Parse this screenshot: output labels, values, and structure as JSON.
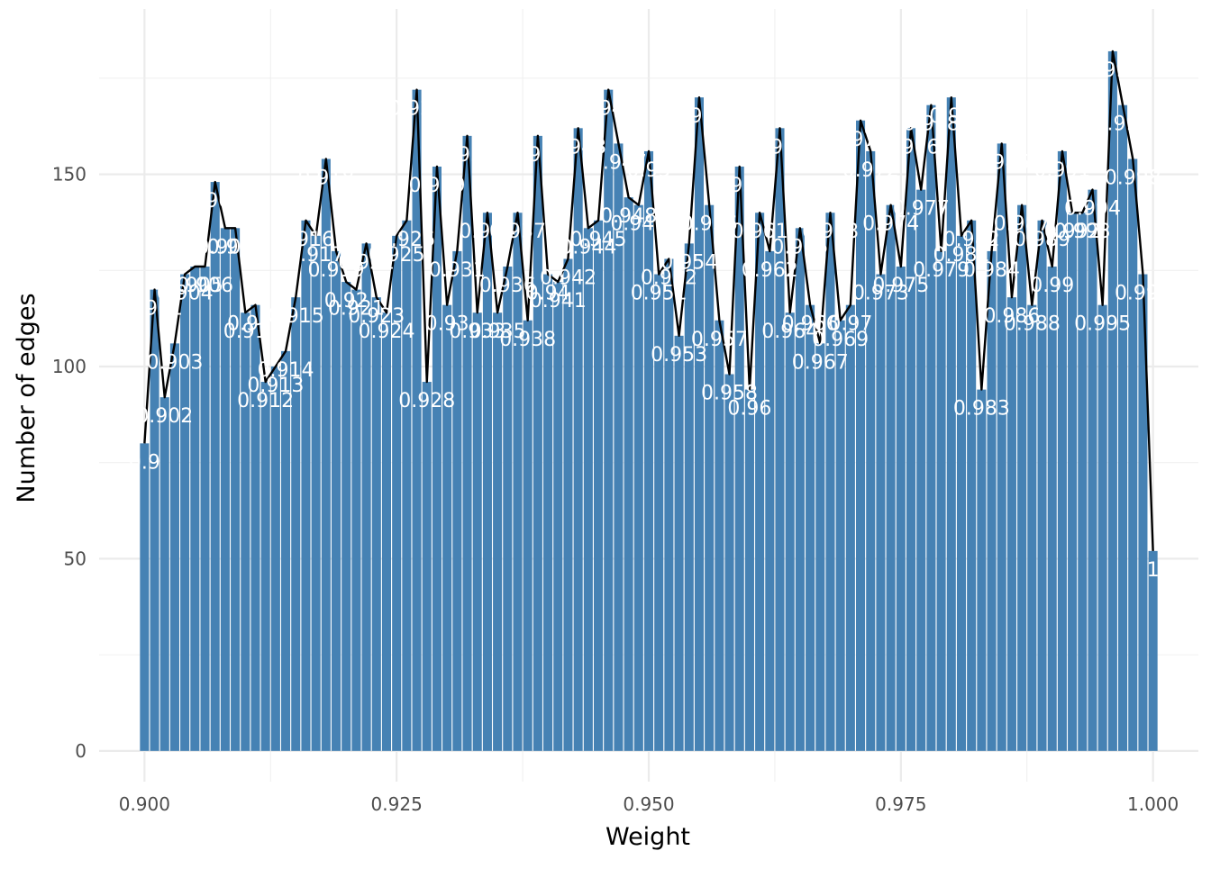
{
  "chart_data": {
    "type": "bar",
    "xlabel": "Weight",
    "ylabel": "Number of edges",
    "xlim": [
      0.8955,
      1.0045
    ],
    "ylim": [
      -8,
      193
    ],
    "grid": true,
    "x_ticks": [
      "0.900",
      "0.925",
      "0.950",
      "0.975",
      "1.000"
    ],
    "y_ticks": [
      "0",
      "50",
      "100",
      "150"
    ],
    "bar_color": "#4682B4",
    "line_color": "#000000",
    "label_color": "#FFFFFF",
    "x": [
      0.9,
      0.901,
      0.902,
      0.903,
      0.904,
      0.905,
      0.906,
      0.907,
      0.908,
      0.909,
      0.91,
      0.911,
      0.912,
      0.913,
      0.914,
      0.915,
      0.916,
      0.917,
      0.918,
      0.919,
      0.92,
      0.921,
      0.922,
      0.923,
      0.924,
      0.925,
      0.926,
      0.927,
      0.928,
      0.929,
      0.93,
      0.931,
      0.932,
      0.933,
      0.934,
      0.935,
      0.936,
      0.937,
      0.938,
      0.939,
      0.94,
      0.941,
      0.942,
      0.943,
      0.944,
      0.945,
      0.946,
      0.947,
      0.948,
      0.949,
      0.95,
      0.951,
      0.952,
      0.953,
      0.954,
      0.955,
      0.956,
      0.957,
      0.958,
      0.959,
      0.96,
      0.961,
      0.962,
      0.963,
      0.964,
      0.965,
      0.966,
      0.967,
      0.968,
      0.969,
      0.97,
      0.971,
      0.972,
      0.973,
      0.974,
      0.975,
      0.976,
      0.977,
      0.978,
      0.979,
      0.98,
      0.981,
      0.982,
      0.983,
      0.984,
      0.985,
      0.986,
      0.987,
      0.988,
      0.989,
      0.99,
      0.991,
      0.992,
      0.993,
      0.994,
      0.995,
      0.996,
      0.997,
      0.998,
      0.999,
      1.0
    ],
    "values": [
      80,
      120,
      92,
      106,
      124,
      126,
      126,
      148,
      136,
      136,
      114,
      116,
      96,
      100,
      104,
      118,
      138,
      134,
      154,
      130,
      122,
      120,
      132,
      118,
      114,
      134,
      138,
      172,
      96,
      152,
      116,
      130,
      160,
      114,
      140,
      114,
      126,
      140,
      112,
      160,
      124,
      122,
      128,
      162,
      136,
      138,
      172,
      158,
      144,
      142,
      156,
      124,
      128,
      108,
      132,
      170,
      142,
      112,
      98,
      152,
      94,
      140,
      130,
      162,
      114,
      136,
      116,
      106,
      140,
      112,
      116,
      164,
      156,
      124,
      142,
      126,
      162,
      146,
      168,
      130,
      170,
      134,
      138,
      94,
      130,
      158,
      118,
      142,
      116,
      138,
      126,
      156,
      140,
      140,
      146,
      116,
      182,
      168,
      154,
      124,
      52
    ],
    "labels": [
      "0.9",
      "0.901",
      "0.902",
      "0.903",
      "0.904",
      "0.905",
      "0.906",
      "0.907",
      "0.908",
      "0.909",
      "0.91",
      "0.911",
      "0.912",
      "0.913",
      "0.914",
      "0.915",
      "0.916",
      "0.917",
      "0.918",
      "0.919",
      "0.92",
      "0.921",
      "0.922",
      "0.923",
      "0.924",
      "0.925",
      "0.926",
      "0.927",
      "0.928",
      "0.929",
      "0.93",
      "0.931",
      "0.932",
      "0.933",
      "0.934",
      "0.935",
      "0.936",
      "0.937",
      "0.938",
      "0.939",
      "0.94",
      "0.941",
      "0.942",
      "0.943",
      "0.944",
      "0.945",
      "0.946",
      "0.947",
      "0.948",
      "0.949",
      "0.95",
      "0.951",
      "0.952",
      "0.953",
      "0.954",
      "0.955",
      "0.956",
      "0.957",
      "0.958",
      "0.959",
      "0.96",
      "0.961",
      "0.962",
      "0.963",
      "0.964",
      "0.965",
      "0.966",
      "0.967",
      "0.968",
      "0.969",
      "0.97",
      "0.971",
      "0.972",
      "0.973",
      "0.974",
      "0.975",
      "0.976",
      "0.977",
      "0.978",
      "0.979",
      "0.98",
      "0.981",
      "0.982",
      "0.983",
      "0.984",
      "0.985",
      "0.986",
      "0.987",
      "0.988",
      "0.989",
      "0.99",
      "0.991",
      "0.992",
      "0.993",
      "0.994",
      "0.995",
      "0.996",
      "0.997",
      "0.998",
      "0.999",
      "1"
    ]
  }
}
